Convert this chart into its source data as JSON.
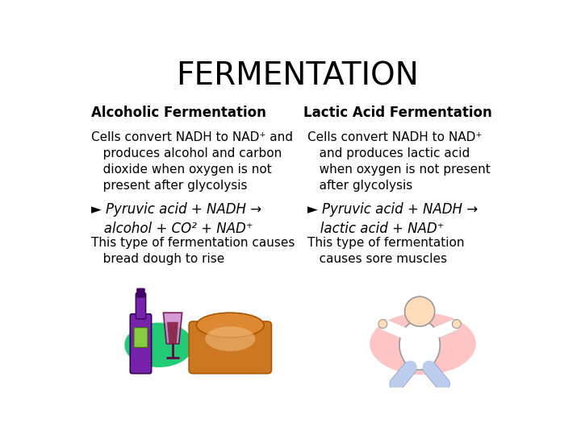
{
  "title": "FERMENTATION",
  "title_fontsize": 28,
  "bg_color": "#ffffff",
  "left_header": "Alcoholic Fermentation",
  "right_header": "Lactic Acid Fermentation",
  "header_fontsize": 12,
  "left_text1": "Cells convert NADH to NAD⁺ and\n   produces alcohol and carbon\n   dioxide when oxygen is not\n   present after glycolysis",
  "left_text2": "► Pyruvic acid + NADH →\n   alcohol + CO² + NAD⁺",
  "left_text3": "This type of fermentation causes\n   bread dough to rise",
  "right_text1": "Cells convert NADH to NAD⁺\n   and produces lactic acid\n   when oxygen is not present\n   after glycolysis",
  "right_text2": "► Pyruvic acid + NADH →\n   lactic acid + NAD⁺",
  "right_text3": "This type of fermentation\n   causes sore muscles",
  "body_fontsize": 11,
  "italic_fontsize": 12
}
